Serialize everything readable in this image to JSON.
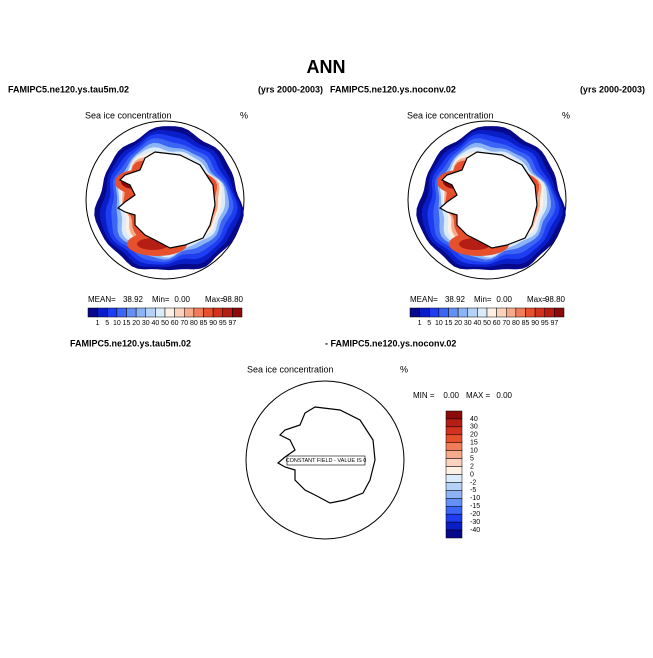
{
  "title": "ANN",
  "panels": [
    {
      "header_left": "FAMIPC5.ne120.ys.tau5m.02",
      "header_right": "(yrs 2000-2003)",
      "plot_title": "Sea ice concentration",
      "units": "%",
      "stats": {
        "mean_label": "MEAN=",
        "mean": "38.92",
        "min_label": "Min=",
        "min": "0.00",
        "max_label": "Max=",
        "max": "98.80"
      }
    },
    {
      "header_left": "FAMIPC5.ne120.ys.noconv.02",
      "header_right": "(yrs 2000-2003)",
      "plot_title": "Sea ice concentration",
      "units": "%",
      "stats": {
        "mean_label": "MEAN=",
        "mean": "38.92",
        "min_label": "Min=",
        "min": "0.00",
        "max_label": "Max=",
        "max": "98.80"
      }
    }
  ],
  "colorbar": {
    "labels": [
      "1",
      "5",
      "10",
      "15",
      "20",
      "30",
      "40",
      "50",
      "60",
      "70",
      "80",
      "85",
      "90",
      "95",
      "97"
    ],
    "colors": [
      "#08088a",
      "#0a1ec8",
      "#1e3cf0",
      "#3c64f5",
      "#6490f5",
      "#8cb4f5",
      "#b4d2f5",
      "#dcebfa",
      "#fff0e6",
      "#fad2be",
      "#f5aa8c",
      "#f07d5a",
      "#e6502d",
      "#d2321e",
      "#b41e14",
      "#8c0a0a"
    ]
  },
  "diff_panel": {
    "header_left": "FAMIPC5.ne120.ys.tau5m.02",
    "header_right": "- FAMIPC5.ne120.ys.noconv.02",
    "plot_title": "Sea ice concentration",
    "units": "%",
    "min_label": "MIN =",
    "min": "0.00",
    "max_label": "MAX =",
    "max": "0.00",
    "note": "CONSTANT FIELD - VALUE IS 0",
    "colorbar": {
      "labels": [
        "40",
        "30",
        "20",
        "15",
        "10",
        "5",
        "2",
        "0",
        "-2",
        "-5",
        "-10",
        "-15",
        "-20",
        "-30",
        "-40"
      ],
      "colors": [
        "#8c0a0a",
        "#b41e14",
        "#d2321e",
        "#e6502d",
        "#f07d5a",
        "#f5aa8c",
        "#fad2be",
        "#fff0e6",
        "#dcebfa",
        "#b4d2f5",
        "#8cb4f5",
        "#6490f5",
        "#3c64f5",
        "#1e3cf0",
        "#0a1ec8",
        "#08088a"
      ]
    }
  }
}
